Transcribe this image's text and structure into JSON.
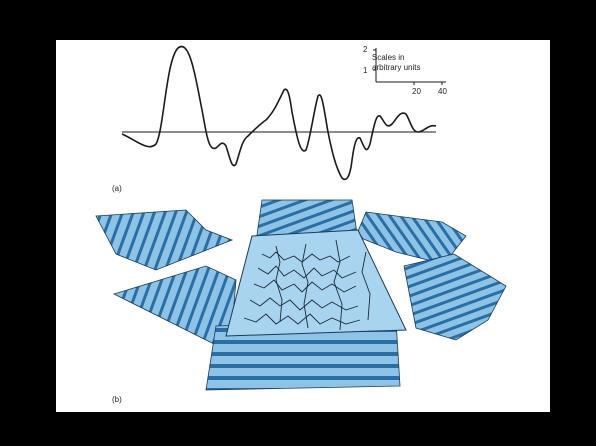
{
  "panel_labels": {
    "a": "(a)",
    "b": "(b)"
  },
  "scale_key": {
    "title_line1": "Scales in",
    "title_line2": "arbitrary units",
    "y_ticks": [
      "2",
      "1"
    ],
    "x_ticks": [
      "20",
      "40"
    ]
  },
  "colors": {
    "background": "#000000",
    "slide": "#ffffff",
    "sheet_fill": "#8ec3e8",
    "sheet_dark": "#2a6ea3",
    "ink": "#1a1a1a"
  }
}
